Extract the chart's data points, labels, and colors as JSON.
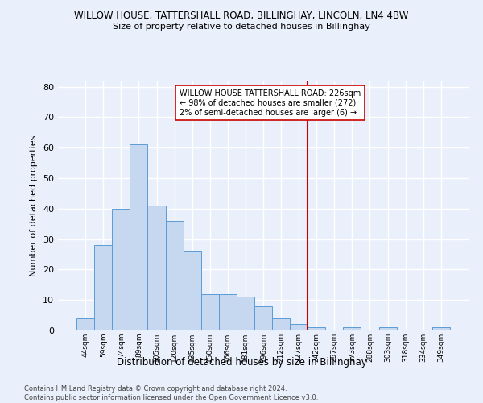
{
  "title": "WILLOW HOUSE, TATTERSHALL ROAD, BILLINGHAY, LINCOLN, LN4 4BW",
  "subtitle": "Size of property relative to detached houses in Billinghay",
  "xlabel": "Distribution of detached houses by size in Billinghay",
  "ylabel": "Number of detached properties",
  "categories": [
    "44sqm",
    "59sqm",
    "74sqm",
    "89sqm",
    "105sqm",
    "120sqm",
    "135sqm",
    "150sqm",
    "166sqm",
    "181sqm",
    "196sqm",
    "212sqm",
    "227sqm",
    "242sqm",
    "257sqm",
    "273sqm",
    "288sqm",
    "303sqm",
    "318sqm",
    "334sqm",
    "349sqm"
  ],
  "values": [
    4,
    28,
    40,
    61,
    41,
    36,
    26,
    12,
    12,
    11,
    8,
    4,
    2,
    1,
    0,
    1,
    0,
    1,
    0,
    0,
    1
  ],
  "bar_color": "#c5d8f0",
  "bar_edge_color": "#5b9bd5",
  "background_color": "#eaf0fb",
  "grid_color": "#ffffff",
  "red_line_x": 12.5,
  "red_line_color": "#cc0000",
  "annotation_text": "WILLOW HOUSE TATTERSHALL ROAD: 226sqm\n← 98% of detached houses are smaller (272)\n2% of semi-detached houses are larger (6) →",
  "footer_text": "Contains HM Land Registry data © Crown copyright and database right 2024.\nContains public sector information licensed under the Open Government Licence v3.0.",
  "ylim": [
    0,
    82
  ],
  "yticks": [
    0,
    10,
    20,
    30,
    40,
    50,
    60,
    70,
    80
  ]
}
